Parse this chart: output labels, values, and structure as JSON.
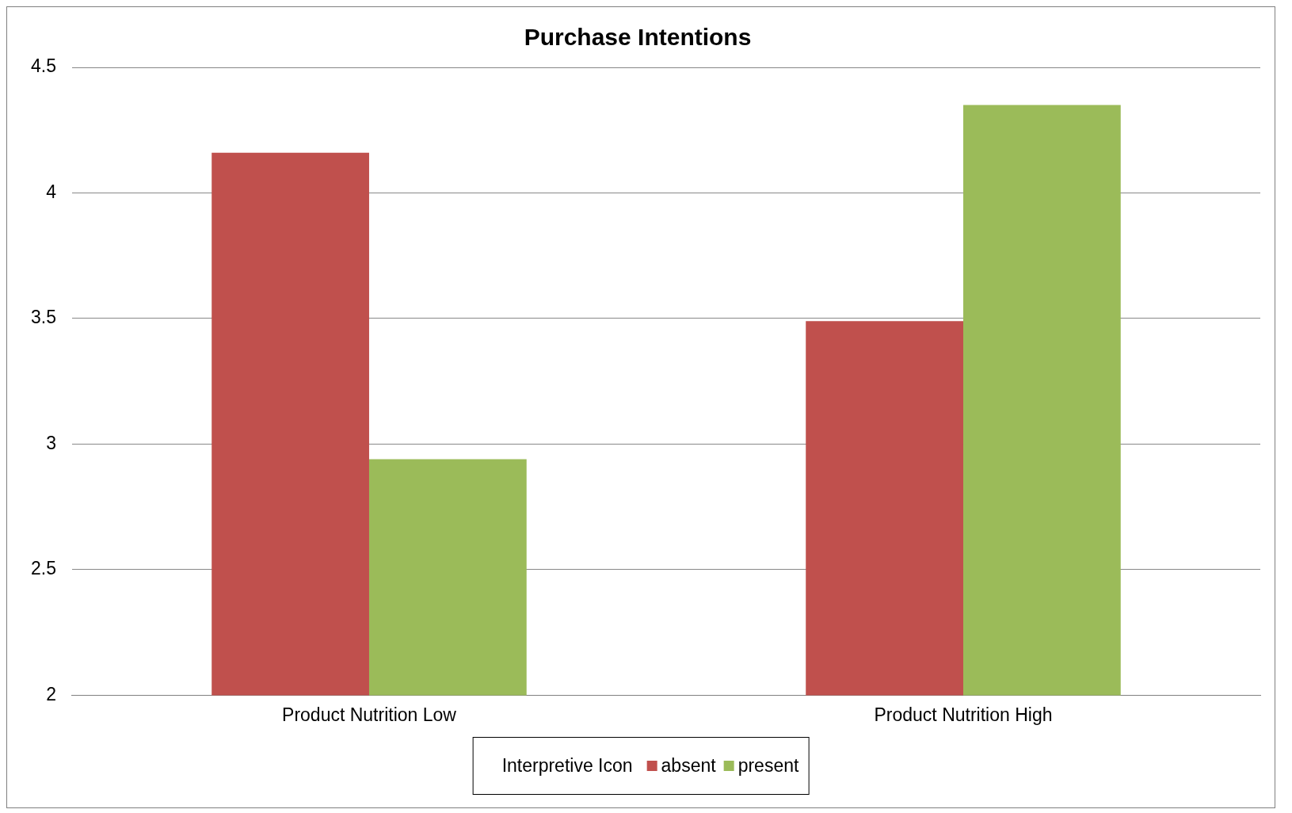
{
  "chart_data": {
    "type": "bar",
    "title": "Purchase Intentions",
    "categories": [
      "Product Nutrition Low",
      "Product Nutrition High"
    ],
    "series": [
      {
        "name": "absent",
        "color": "#c0504d",
        "values": [
          4.16,
          3.49
        ]
      },
      {
        "name": "present",
        "color": "#9bbb59",
        "values": [
          2.94,
          4.35
        ]
      }
    ],
    "legend_title": "Interpretive Icon",
    "legend": "bottom",
    "ylim": [
      2,
      4.5
    ],
    "yticks": [
      2,
      2.5,
      3,
      3.5,
      4,
      4.5
    ],
    "grid": "y"
  }
}
